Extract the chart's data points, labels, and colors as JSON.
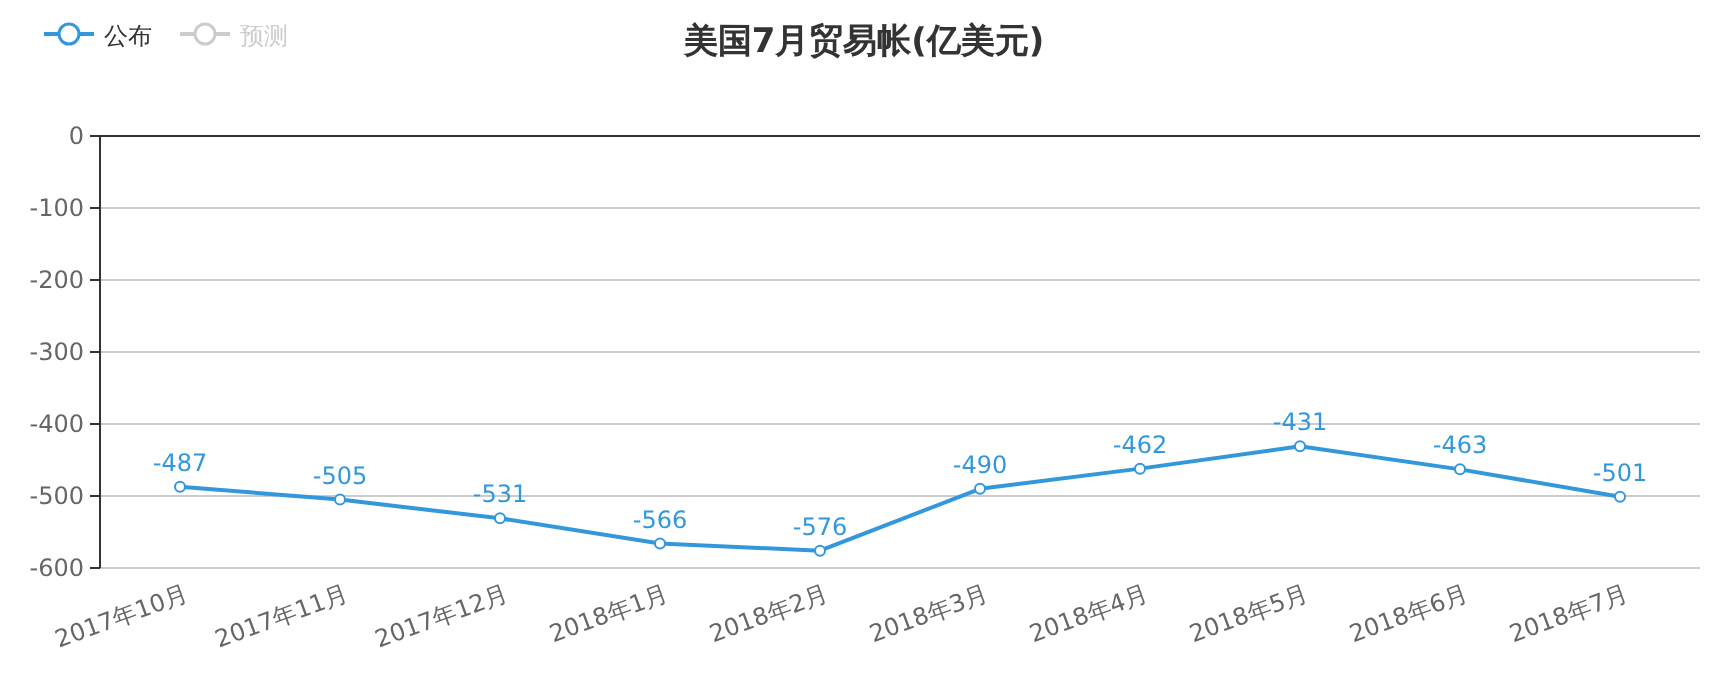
{
  "chart_data": {
    "type": "line",
    "title": "美国7月贸易帐(亿美元)",
    "categories": [
      "2017年10月",
      "2017年11月",
      "2017年12月",
      "2018年1月",
      "2018年2月",
      "2018年3月",
      "2018年4月",
      "2018年5月",
      "2018年6月",
      "2018年7月"
    ],
    "series": [
      {
        "name": "公布",
        "color": "#3398db",
        "values": [
          -487,
          -505,
          -531,
          -566,
          -576,
          -490,
          -462,
          -431,
          -463,
          -501
        ]
      },
      {
        "name": "预测",
        "color": "#cccccc",
        "values": [
          null,
          null,
          null,
          null,
          null,
          null,
          null,
          null,
          null,
          null
        ]
      }
    ],
    "ylim": [
      -600,
      0
    ],
    "yticks": [
      -600,
      -500,
      -400,
      -300,
      -200,
      -100,
      0
    ],
    "grid": "y",
    "legend": "top left",
    "marker": "circle",
    "data_labels": true
  }
}
